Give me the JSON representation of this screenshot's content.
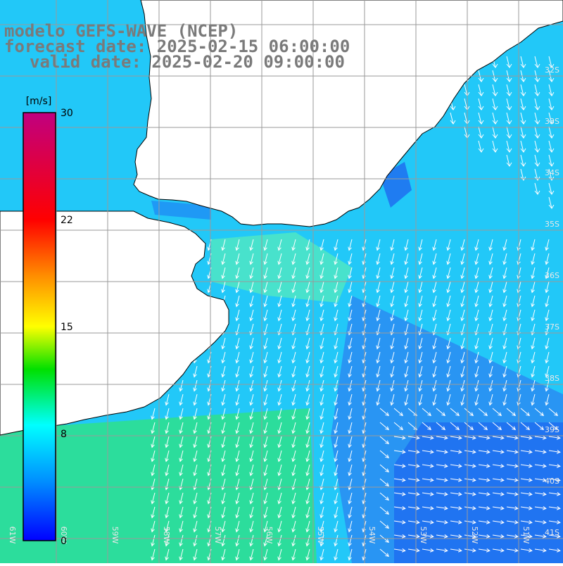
{
  "title": {
    "line1": "modelo GEFS-WAVE (NCEP)",
    "line2": "forecast date: 2025-02-15 06:00:00",
    "line3": "valid date: 2025-02-20 09:00:00"
  },
  "colorbar": {
    "unit": "[m/s]",
    "ticks": [
      "30",
      "22",
      "15",
      "8",
      "0"
    ]
  },
  "grid": {
    "lat_labels": [
      "32S",
      "33S",
      "34S",
      "35S",
      "36S",
      "37S",
      "38S",
      "39S",
      "40S",
      "41S"
    ],
    "lon_labels": [
      "61W",
      "60W",
      "59W",
      "58W",
      "57W",
      "56W",
      "55W",
      "54W",
      "53W",
      "52W",
      "51W"
    ]
  },
  "colors": {
    "ocean_base": "#22c8f8",
    "ocean_dark": "#1e6ef0",
    "ocean_green": "#2ee08c",
    "land": "#ffffff",
    "grid": "#9a9a9a",
    "title": "#7a7a7a"
  }
}
